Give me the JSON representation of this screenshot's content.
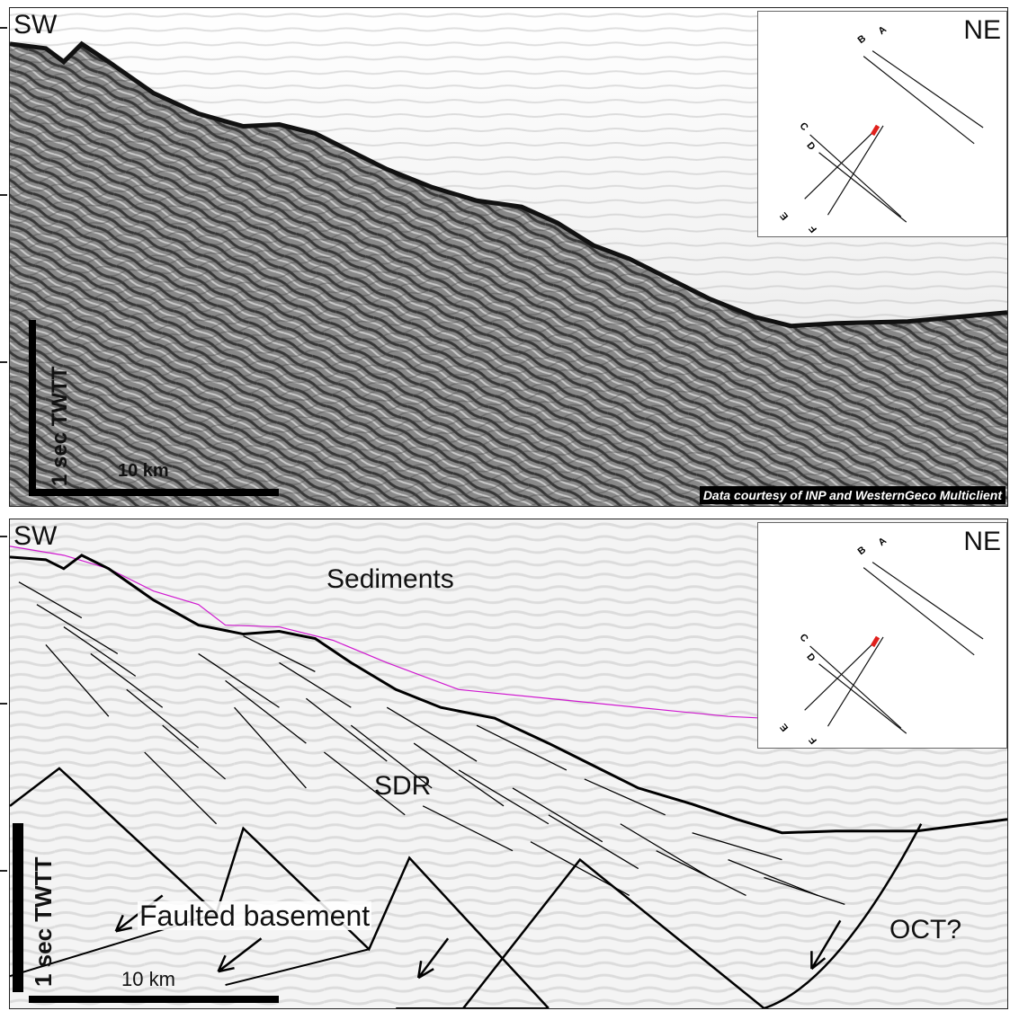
{
  "top_panel": {
    "left_label": "SW",
    "right_label": "NE",
    "scale_vertical": "1 sec TWTT",
    "scale_horizontal": "10 km",
    "credit": "Data courtesy of INP and WesternGeco Multiclient"
  },
  "bottom_panel": {
    "left_label": "SW",
    "right_label": "NE",
    "scale_vertical": "1 sec TWTT",
    "scale_horizontal": "10 km",
    "labels": {
      "sediments": "Sediments",
      "sdr": "SDR",
      "faulted_basement": "Faulted basement",
      "oct": "OCT?"
    }
  },
  "inset_map": {
    "line_labels": [
      "A",
      "B",
      "C",
      "D",
      "E",
      "F"
    ],
    "highlight_color": "#e0201c"
  },
  "colors": {
    "horizon_line": "#d01ad0",
    "interpretation": "#000000",
    "seismic_dark": "#3a3a3a"
  }
}
